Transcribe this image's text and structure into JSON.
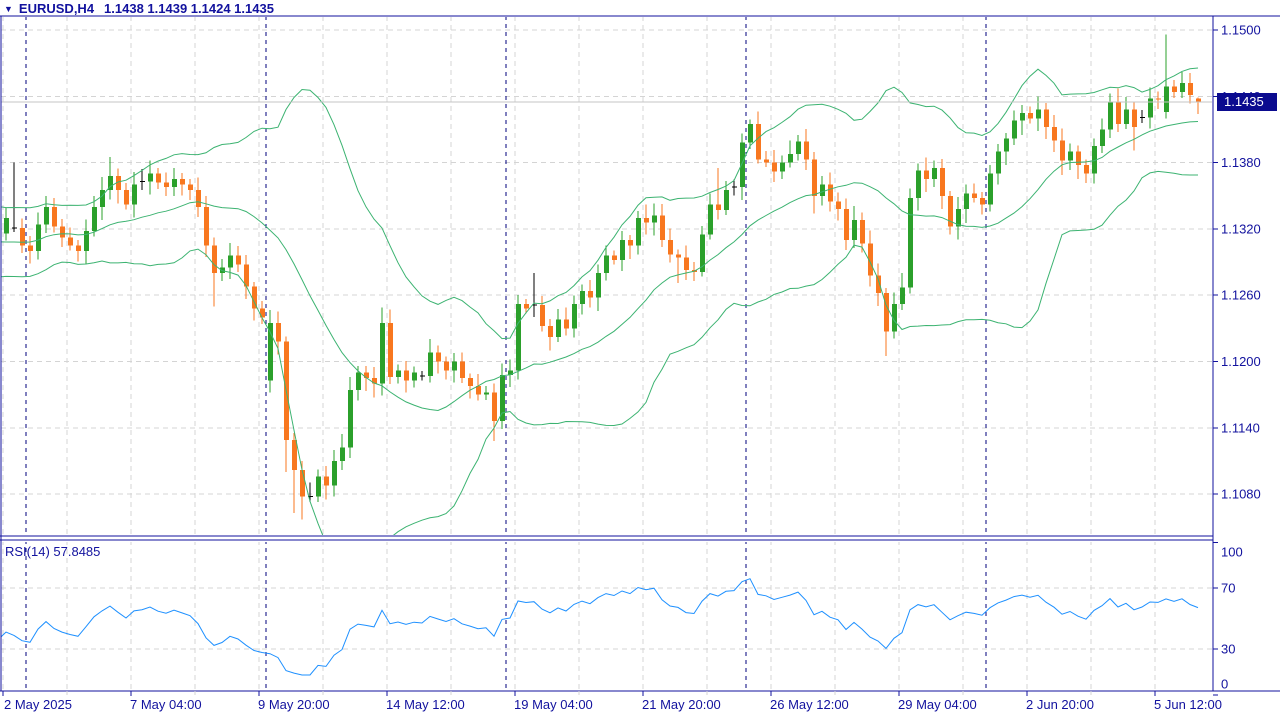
{
  "window": {
    "title_symbol_period": "EURUSD,H4",
    "title_ohlc": "1.1438 1.1439 1.1424 1.1435"
  },
  "chart_data": {
    "type": "candlestick",
    "symbol": "EURUSD",
    "timeframe": "H4",
    "title": "EURUSD,H4 1.1438 1.1439 1.1424 1.1435",
    "current_bar": {
      "open": 1.1438,
      "high": 1.1439,
      "low": 1.1424,
      "close": 1.1435
    },
    "bid_price": 1.1435,
    "bid_text": "1.1435",
    "price_axis_values": [
      1.15,
      1.144,
      1.138,
      1.132,
      1.126,
      1.12,
      1.114,
      1.108
    ],
    "price_axis_labels": [
      "1.1500",
      "1.1440",
      "1.1380",
      "1.1320",
      "1.1260",
      "1.1200",
      "1.1140",
      "1.1080"
    ],
    "time_axis_labels": [
      "2 May 2025",
      "7 May 04:00",
      "9 May 20:00",
      "14 May 12:00",
      "19 May 04:00",
      "21 May 20:00",
      "26 May 12:00",
      "29 May 04:00",
      "2 Jun 20:00",
      "5 Jun 12:00"
    ],
    "rsi": {
      "label": "RSI(14) 57.8485",
      "period": 14,
      "value": 57.8485,
      "levels": [
        30,
        70
      ],
      "axis_ticks": [
        100,
        70,
        30,
        0
      ]
    },
    "bollinger": {
      "period": 20,
      "deviation": 2
    },
    "week_separator_bars": [
      3,
      33,
      63,
      93,
      123
    ],
    "prepad_closes": [
      1.142,
      1.1405,
      1.1388,
      1.137,
      1.1352,
      1.1335,
      1.132,
      1.1308,
      1.1298,
      1.1288,
      1.128,
      1.1285,
      1.1295,
      1.1308,
      1.1318,
      1.131,
      1.1298,
      1.129,
      1.13,
      1.1312,
      1.1322,
      1.133,
      1.1318,
      1.1336,
      1.1316
    ],
    "closes": [
      1.133,
      1.1321,
      1.1305,
      1.13,
      1.1324,
      1.134,
      1.1322,
      1.1312,
      1.1305,
      1.13,
      1.1318,
      1.134,
      1.1355,
      1.1368,
      1.1355,
      1.1342,
      1.136,
      1.1363,
      1.137,
      1.1362,
      1.1358,
      1.1365,
      1.136,
      1.1355,
      1.134,
      1.1305,
      1.128,
      1.1285,
      1.1296,
      1.1288,
      1.1268,
      1.1248,
      1.124,
      1.1235,
      1.1218,
      1.1129,
      1.1102,
      1.1078,
      1.1078,
      1.1096,
      1.1088,
      1.111,
      1.1122,
      1.1174,
      1.119,
      1.1185,
      1.118,
      1.1235,
      1.1186,
      1.1192,
      1.1183,
      1.119,
      1.1187,
      1.1208,
      1.12,
      1.1192,
      1.12,
      1.1185,
      1.1178,
      1.117,
      1.1172,
      1.1146,
      1.1188,
      1.1192,
      1.1252,
      1.1248,
      1.1251,
      1.1232,
      1.1222,
      1.1238,
      1.123,
      1.1252,
      1.1264,
      1.1258,
      1.128,
      1.1296,
      1.1292,
      1.131,
      1.1305,
      1.133,
      1.1326,
      1.1332,
      1.131,
      1.1297,
      1.1294,
      1.1283,
      1.1281,
      1.1315,
      1.1342,
      1.1337,
      1.1355,
      1.1358,
      1.1398,
      1.1415,
      1.1383,
      1.138,
      1.1372,
      1.138,
      1.1388,
      1.1399,
      1.1383,
      1.135,
      1.136,
      1.1345,
      1.1338,
      1.131,
      1.1328,
      1.1307,
      1.1278,
      1.1262,
      1.1227,
      1.1252,
      1.1267,
      1.1348,
      1.1373,
      1.1365,
      1.1375,
      1.135,
      1.1322,
      1.1338,
      1.1352,
      1.1348,
      1.1342,
      1.137,
      1.139,
      1.1402,
      1.1418,
      1.1425,
      1.142,
      1.1428,
      1.1412,
      1.14,
      1.1382,
      1.139,
      1.1378,
      1.137,
      1.1395,
      1.141,
      1.1435,
      1.1415,
      1.1428,
      1.1412,
      1.1421,
      1.1438,
      1.1437,
      1.1449,
      1.1444,
      1.1452,
      1.1441,
      1.1435
    ],
    "doji_bars": [
      1,
      17,
      38,
      52,
      66,
      91,
      142
    ],
    "open_overrides": {
      "33": 1.1183,
      "145": 1.1426
    },
    "wick_overrides": {
      "1": [
        1.138,
        1.1317
      ],
      "13": [
        1.1385,
        null
      ],
      "26": [
        null,
        1.125
      ],
      "35": [
        null,
        1.11
      ],
      "36": [
        null,
        1.1063
      ],
      "37": [
        null,
        1.1057
      ],
      "44": [
        1.1196,
        null
      ],
      "47": [
        1.1249,
        null
      ],
      "61": [
        null,
        1.1128
      ],
      "66": [
        1.128,
        null
      ],
      "81": [
        1.1343,
        null
      ],
      "84": [
        null,
        1.1271
      ],
      "89": [
        1.1375,
        null
      ],
      "93": [
        1.1419,
        null
      ],
      "99": [
        1.1405,
        null
      ],
      "101": [
        null,
        1.1334
      ],
      "110": [
        null,
        1.1205
      ],
      "116": [
        1.1382,
        null
      ],
      "127": [
        1.1432,
        null
      ],
      "132": [
        null,
        1.1369
      ],
      "141": [
        null,
        1.1391
      ],
      "143": [
        1.1448,
        null
      ],
      "145": [
        1.1496,
        1.142
      ],
      "147": [
        1.1462,
        null
      ]
    }
  },
  "colors": {
    "background": "#FFFFFF",
    "text": "#12129E",
    "frame": "#12129E",
    "grid": "#D4D4D4",
    "separator": "#00007D",
    "bull": "#2BA02B",
    "bear": "#F8771F",
    "doji": "#000000",
    "bollinger": "#3CB371",
    "rsi_line": "#1E90FF",
    "bid_line": "#C4C4C4",
    "badge_bg": "#0B0B8F",
    "badge_fg": "#FFFFFF"
  }
}
